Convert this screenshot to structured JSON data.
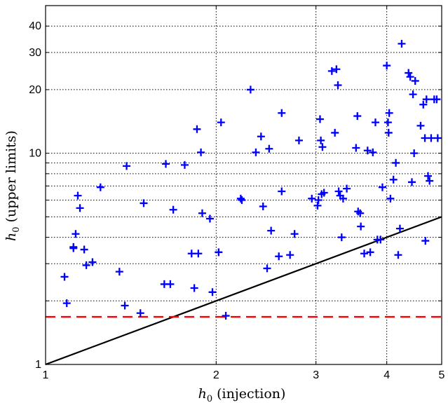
{
  "chart_data": {
    "type": "scatter",
    "xlabel": {
      "main": "h",
      "sub": "0",
      "rest": " (injection)"
    },
    "ylabel": {
      "main": "h",
      "sub": "0",
      "rest": " (upper limits)"
    },
    "xscale": "log",
    "yscale": "log",
    "xlim": [
      1,
      5
    ],
    "ylim": [
      1,
      50
    ],
    "xticks": [
      1,
      2,
      3,
      4,
      5
    ],
    "yticks": [
      1,
      10,
      20,
      30,
      40
    ],
    "grid": true,
    "marker_color": "#0000ff",
    "points": [
      {
        "x": 1.08,
        "y": 2.6
      },
      {
        "x": 1.09,
        "y": 1.95
      },
      {
        "x": 1.12,
        "y": 3.55
      },
      {
        "x": 1.12,
        "y": 3.6
      },
      {
        "x": 1.13,
        "y": 4.15
      },
      {
        "x": 1.14,
        "y": 6.3
      },
      {
        "x": 1.15,
        "y": 5.5
      },
      {
        "x": 1.17,
        "y": 3.5
      },
      {
        "x": 1.18,
        "y": 2.95
      },
      {
        "x": 1.21,
        "y": 3.05
      },
      {
        "x": 1.25,
        "y": 6.9
      },
      {
        "x": 1.35,
        "y": 2.75
      },
      {
        "x": 1.38,
        "y": 1.9
      },
      {
        "x": 1.39,
        "y": 8.7
      },
      {
        "x": 1.47,
        "y": 1.75
      },
      {
        "x": 1.49,
        "y": 5.8
      },
      {
        "x": 1.62,
        "y": 2.4
      },
      {
        "x": 1.63,
        "y": 8.9
      },
      {
        "x": 1.66,
        "y": 2.4
      },
      {
        "x": 1.68,
        "y": 5.4
      },
      {
        "x": 1.76,
        "y": 8.8
      },
      {
        "x": 1.81,
        "y": 3.35
      },
      {
        "x": 1.83,
        "y": 2.3
      },
      {
        "x": 1.85,
        "y": 13.0
      },
      {
        "x": 1.86,
        "y": 3.35
      },
      {
        "x": 1.88,
        "y": 10.1
      },
      {
        "x": 1.89,
        "y": 5.2
      },
      {
        "x": 1.95,
        "y": 4.9
      },
      {
        "x": 1.97,
        "y": 2.2
      },
      {
        "x": 2.02,
        "y": 3.4
      },
      {
        "x": 2.04,
        "y": 14.0
      },
      {
        "x": 2.08,
        "y": 1.7
      },
      {
        "x": 2.21,
        "y": 6.1
      },
      {
        "x": 2.22,
        "y": 6.0
      },
      {
        "x": 2.3,
        "y": 20.0
      },
      {
        "x": 2.35,
        "y": 10.1
      },
      {
        "x": 2.4,
        "y": 12.0
      },
      {
        "x": 2.42,
        "y": 5.6
      },
      {
        "x": 2.46,
        "y": 2.85
      },
      {
        "x": 2.48,
        "y": 10.5
      },
      {
        "x": 2.5,
        "y": 4.3
      },
      {
        "x": 2.58,
        "y": 3.25
      },
      {
        "x": 2.61,
        "y": 15.5
      },
      {
        "x": 2.61,
        "y": 6.6
      },
      {
        "x": 2.7,
        "y": 3.3
      },
      {
        "x": 2.75,
        "y": 4.15
      },
      {
        "x": 2.8,
        "y": 11.5
      },
      {
        "x": 2.95,
        "y": 6.1
      },
      {
        "x": 3.02,
        "y": 5.65
      },
      {
        "x": 3.03,
        "y": 6.0
      },
      {
        "x": 3.05,
        "y": 14.5
      },
      {
        "x": 3.06,
        "y": 11.5
      },
      {
        "x": 3.07,
        "y": 6.4
      },
      {
        "x": 3.08,
        "y": 10.7
      },
      {
        "x": 3.1,
        "y": 6.5
      },
      {
        "x": 3.2,
        "y": 24.5
      },
      {
        "x": 3.24,
        "y": 12.5
      },
      {
        "x": 3.26,
        "y": 25.0
      },
      {
        "x": 3.28,
        "y": 21.0
      },
      {
        "x": 3.29,
        "y": 6.6
      },
      {
        "x": 3.31,
        "y": 6.3
      },
      {
        "x": 3.33,
        "y": 4.0
      },
      {
        "x": 3.35,
        "y": 6.1
      },
      {
        "x": 3.4,
        "y": 6.8
      },
      {
        "x": 3.53,
        "y": 10.6
      },
      {
        "x": 3.55,
        "y": 15.0
      },
      {
        "x": 3.56,
        "y": 5.3
      },
      {
        "x": 3.59,
        "y": 5.2
      },
      {
        "x": 3.6,
        "y": 4.5
      },
      {
        "x": 3.65,
        "y": 3.35
      },
      {
        "x": 3.7,
        "y": 10.3
      },
      {
        "x": 3.74,
        "y": 3.4
      },
      {
        "x": 3.78,
        "y": 10.1
      },
      {
        "x": 3.82,
        "y": 14.0
      },
      {
        "x": 3.85,
        "y": 3.9
      },
      {
        "x": 3.9,
        "y": 3.9
      },
      {
        "x": 3.93,
        "y": 6.9
      },
      {
        "x": 4.0,
        "y": 26.0
      },
      {
        "x": 4.02,
        "y": 14.0
      },
      {
        "x": 4.03,
        "y": 12.5
      },
      {
        "x": 4.04,
        "y": 15.5
      },
      {
        "x": 4.06,
        "y": 6.1
      },
      {
        "x": 4.11,
        "y": 7.5
      },
      {
        "x": 4.15,
        "y": 9.0
      },
      {
        "x": 4.19,
        "y": 3.3
      },
      {
        "x": 4.22,
        "y": 4.4
      },
      {
        "x": 4.25,
        "y": 33.0
      },
      {
        "x": 4.37,
        "y": 24.0
      },
      {
        "x": 4.4,
        "y": 23.0
      },
      {
        "x": 4.43,
        "y": 7.3
      },
      {
        "x": 4.45,
        "y": 19.0
      },
      {
        "x": 4.47,
        "y": 10.0
      },
      {
        "x": 4.49,
        "y": 22.0
      },
      {
        "x": 4.59,
        "y": 13.5
      },
      {
        "x": 4.64,
        "y": 17.0
      },
      {
        "x": 4.67,
        "y": 11.8
      },
      {
        "x": 4.68,
        "y": 3.85
      },
      {
        "x": 4.7,
        "y": 18.0
      },
      {
        "x": 4.73,
        "y": 7.8
      },
      {
        "x": 4.76,
        "y": 7.4
      },
      {
        "x": 4.79,
        "y": 11.8
      },
      {
        "x": 4.85,
        "y": 18.0
      },
      {
        "x": 4.9,
        "y": 18.0
      },
      {
        "x": 4.92,
        "y": 11.8
      }
    ],
    "reference_line": {
      "points": [
        [
          1,
          1
        ],
        [
          5,
          5
        ]
      ],
      "color": "#000000",
      "style": "solid"
    },
    "threshold_line": {
      "y": 1.68,
      "color": "#ff0000",
      "style": "dashed"
    }
  }
}
